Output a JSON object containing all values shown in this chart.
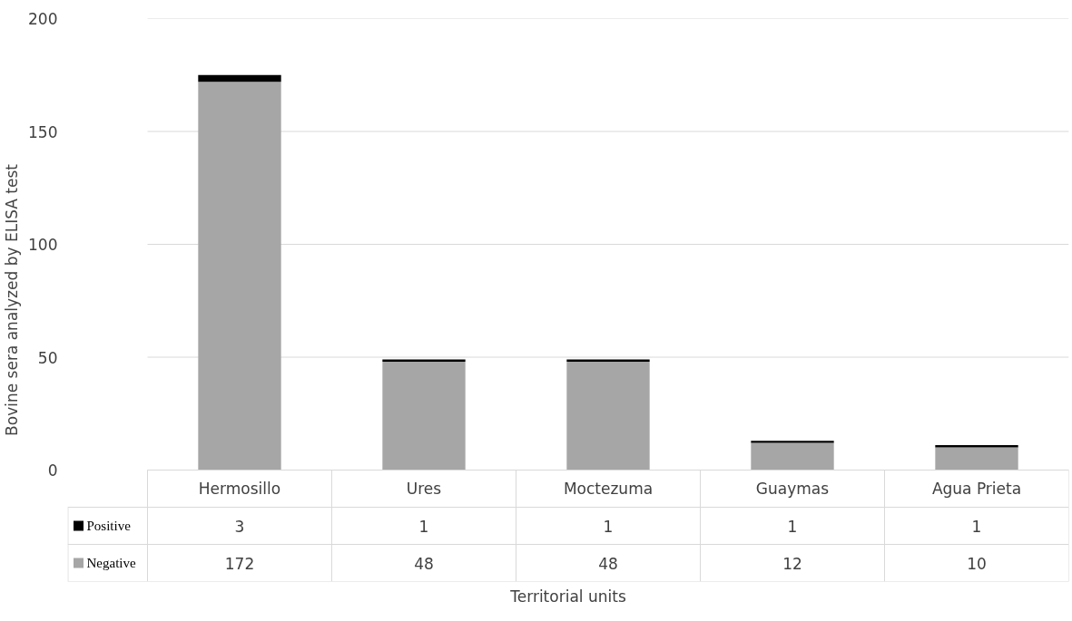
{
  "chart_data": {
    "type": "bar",
    "stacked": true,
    "categories": [
      "Hermosillo",
      "Ures",
      "Moctezuma",
      "Guaymas",
      "Agua Prieta"
    ],
    "series": [
      {
        "name": "Negative",
        "color": "#a6a6a6",
        "values": [
          172,
          48,
          48,
          12,
          10
        ]
      },
      {
        "name": "Positive",
        "color": "#000000",
        "values": [
          3,
          1,
          1,
          1,
          1
        ]
      }
    ],
    "ylim": [
      0,
      200
    ],
    "yticks": [
      0,
      50,
      100,
      150,
      200
    ],
    "ylabel": "Bovine sera analyzed by ELISA test",
    "annotations": [
      "Territorial units"
    ],
    "data_labels": true,
    "grid": "y",
    "legend": "bottom"
  }
}
